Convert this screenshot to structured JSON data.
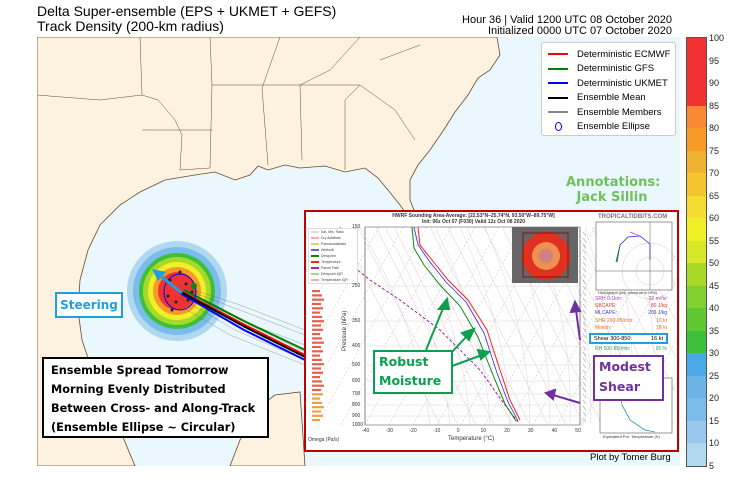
{
  "header": {
    "title_line1": "Delta Super-ensemble (EPS + UKMET + GEFS)",
    "title_line2": "Track Density (200-km radius)",
    "valid": "Hour 36 | Valid 1200 UTC 08 October 2020",
    "initialized": "Initialized 0000 UTC 07 October 2020"
  },
  "legend": [
    {
      "label": "Deterministic ECMWF",
      "color": "#ff0000"
    },
    {
      "label": "Deterministic GFS",
      "color": "#008000"
    },
    {
      "label": "Deterministic UKMET",
      "color": "#0000ff"
    },
    {
      "label": "Ensemble Mean",
      "color": "#000000"
    },
    {
      "label": "Ensemble Members",
      "color": "#888888"
    },
    {
      "label": "Ensemble Ellipse",
      "color": "#0000ff",
      "marker": "circle"
    }
  ],
  "colorbar": {
    "ticks": [
      "100",
      "95",
      "90",
      "85",
      "80",
      "75",
      "70",
      "65",
      "60",
      "55",
      "50",
      "45",
      "40",
      "35",
      "30",
      "25",
      "20",
      "15",
      "10",
      "5"
    ],
    "bands": [
      {
        "from": 85,
        "to": 100,
        "color": "#f03232"
      },
      {
        "from": 80,
        "to": 85,
        "color": "#f88a35"
      },
      {
        "from": 75,
        "to": 80,
        "color": "#f89a28"
      },
      {
        "from": 70,
        "to": 75,
        "color": "#f0b030"
      },
      {
        "from": 65,
        "to": 70,
        "color": "#f5c530"
      },
      {
        "from": 60,
        "to": 65,
        "color": "#f5dc30"
      },
      {
        "from": 55,
        "to": 60,
        "color": "#f0f028"
      },
      {
        "from": 50,
        "to": 55,
        "color": "#d8e828"
      },
      {
        "from": 45,
        "to": 50,
        "color": "#a8d828"
      },
      {
        "from": 40,
        "to": 45,
        "color": "#80d030"
      },
      {
        "from": 35,
        "to": 40,
        "color": "#60c830"
      },
      {
        "from": 30,
        "to": 35,
        "color": "#3cc03c"
      },
      {
        "from": 25,
        "to": 30,
        "color": "#4aa8e8"
      },
      {
        "from": 20,
        "to": 25,
        "color": "#6cb4e8"
      },
      {
        "from": 15,
        "to": 20,
        "color": "#7cbcec"
      },
      {
        "from": 10,
        "to": 15,
        "color": "#98c8f0"
      },
      {
        "from": 5,
        "to": 10,
        "color": "#b0d8f0"
      }
    ]
  },
  "annotations": {
    "credit_line1": "Annotations:",
    "credit_line2": "Jack Sillin",
    "steering": "Steering",
    "spread_lines": [
      "Ensemble Spread Tomorrow",
      "Morning Evenly Distributed",
      "Between Cross- and Along-Track",
      "(Ensemble Ellipse ~ Circular)"
    ],
    "robust_line1": "Robust",
    "robust_line2": "Moisture",
    "shear_line1": "Modest",
    "shear_line2": "Shear",
    "plot_by": "Plot by Tomer Burg"
  },
  "sounding": {
    "title": "HWRF Sounding Area-Average: [22.53°N–25.74°N, 93.50°W–89.75°W]",
    "subtitle": "Init: 06z Oct 07 (F030) Valid 12z Oct 08 2020",
    "site": "TROPICALTIDBITS.COM",
    "ylabel": "Pressure (hPa)",
    "xlabel": "Temperature (°C)",
    "omega_label": "Omega (Pa/s)",
    "pressure_ticks": [
      "150",
      "250",
      "350",
      "400",
      "500",
      "600",
      "700",
      "800",
      "900",
      "1000"
    ],
    "temp_ticks": [
      "-40",
      "-30",
      "-20",
      "-10",
      "0",
      "10",
      "20",
      "30",
      "40",
      "50"
    ],
    "legend_items": [
      "Sat. Mix. Ratio",
      "Dry Adiabats",
      "Pseudoadiabats",
      "Wetbulb",
      "Dewpoint",
      "Temperature",
      "Parcel Path",
      "Dewpoint IQR",
      "Temperature IQR"
    ],
    "params": [
      {
        "label": "SRH 0-1km:",
        "value": "32 m²/s²",
        "color": "#b040b0"
      },
      {
        "label": "SBCAPE:",
        "value": "80 J/kg",
        "color": "#d04040"
      },
      {
        "label": "MLCAPE:",
        "value": "209 J/kg",
        "color": "#4040d0"
      },
      {
        "label": "SHR 200-850mb:",
        "value": "19 kt",
        "color": "#e07030"
      },
      {
        "label": "Motion:",
        "value": "18 kt",
        "color": "#e07030"
      }
    ],
    "shear": {
      "label": "Shear 300-850:",
      "value": "16 kt"
    },
    "rh": {
      "label": "RH 500-850mb:",
      "value": "95 %"
    },
    "hodograph_caption": "Hodograph (kts; pressure in hPa)",
    "theta_caption": "Equivalent Pot. Temperature (K)"
  }
}
